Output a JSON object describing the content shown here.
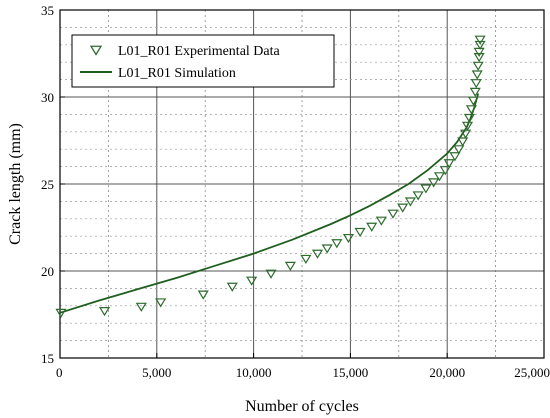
{
  "chart_data": {
    "type": "scatter",
    "xlabel": "Number of cycles",
    "ylabel": "Crack length (mm)",
    "xlim": [
      0,
      25000
    ],
    "ylim": [
      15,
      35
    ],
    "x_ticks": [
      "0",
      "5,000",
      "10,000",
      "15,000",
      "20,000",
      "25,000"
    ],
    "y_ticks": [
      "15",
      "20",
      "25",
      "30",
      "35"
    ],
    "grid": true,
    "legend_position": "top-left",
    "series": [
      {
        "name": "L01_R01 Experimental Data",
        "marker": "triangle-down-open",
        "color": "#2e6b2e",
        "x": [
          50,
          2300,
          4200,
          5200,
          7400,
          8900,
          9900,
          10900,
          11900,
          12700,
          13300,
          13800,
          14300,
          14900,
          15500,
          16100,
          16600,
          17200,
          17700,
          18100,
          18500,
          18900,
          19300,
          19600,
          19900,
          20100,
          20400,
          20600,
          20800,
          20950,
          21050,
          21150,
          21250,
          21350,
          21450,
          21500,
          21550,
          21600,
          21650,
          21650,
          21700,
          21700
        ],
        "y": [
          17.6,
          17.7,
          17.95,
          18.2,
          18.65,
          19.1,
          19.45,
          19.85,
          20.3,
          20.7,
          21.0,
          21.3,
          21.6,
          21.9,
          22.25,
          22.55,
          22.9,
          23.3,
          23.65,
          24.0,
          24.35,
          24.75,
          25.1,
          25.45,
          25.8,
          26.2,
          26.6,
          27.0,
          27.45,
          27.9,
          28.35,
          28.8,
          29.3,
          29.8,
          30.3,
          30.8,
          31.3,
          31.8,
          32.3,
          32.6,
          33.0,
          33.3
        ]
      },
      {
        "name": "L01_R01 Simulation",
        "type": "line",
        "color": "#1f5e1f",
        "x": [
          0,
          2000,
          4000,
          6000,
          8000,
          10000,
          12000,
          14000,
          15000,
          16000,
          17000,
          18000,
          19000,
          20000,
          20500,
          21000,
          21200,
          21400,
          21600
        ],
        "y": [
          17.6,
          18.3,
          18.95,
          19.6,
          20.3,
          21.0,
          21.8,
          22.7,
          23.2,
          23.75,
          24.35,
          25.0,
          25.8,
          26.75,
          27.4,
          28.25,
          28.75,
          29.4,
          30.2
        ]
      }
    ]
  }
}
